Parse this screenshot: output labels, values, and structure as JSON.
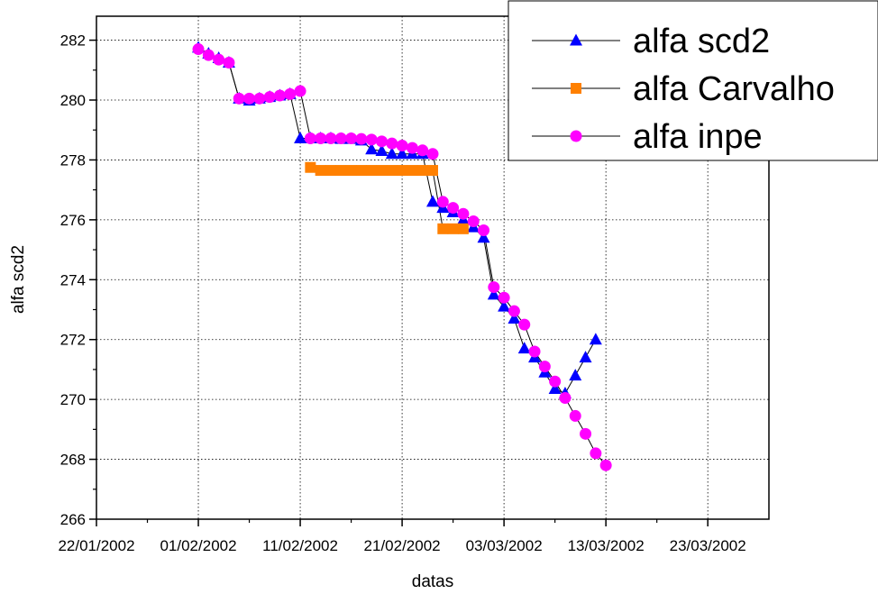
{
  "chart_data": {
    "type": "scatter",
    "xlabel": "datas",
    "ylabel": "alfa scd2",
    "x_ticks": [
      "22/01/2002",
      "01/02/2002",
      "11/02/2002",
      "21/02/2002",
      "03/03/2002",
      "13/03/2002",
      "23/03/2002"
    ],
    "y_ticks": [
      "266",
      "268",
      "270",
      "272",
      "274",
      "276",
      "278",
      "280",
      "282"
    ],
    "xlim": [
      "22/01/2002",
      "29/03/2002"
    ],
    "ylim": [
      266,
      282.8
    ],
    "grid": true,
    "legend_position": "top-right",
    "series": [
      {
        "name": "alfa scd2",
        "marker": "triangle",
        "color": "#0000ff",
        "points": [
          [
            "01/02/2002",
            281.75
          ],
          [
            "02/02/2002",
            281.55
          ],
          [
            "03/02/2002",
            281.4
          ],
          [
            "04/02/2002",
            281.25
          ],
          [
            "05/02/2002",
            280.05
          ],
          [
            "06/02/2002",
            279.98
          ],
          [
            "07/02/2002",
            280.05
          ],
          [
            "08/02/2002",
            280.1
          ],
          [
            "09/02/2002",
            280.15
          ],
          [
            "10/02/2002",
            280.2
          ],
          [
            "11/02/2002",
            278.72
          ],
          [
            "12/02/2002",
            278.72
          ],
          [
            "13/02/2002",
            278.72
          ],
          [
            "14/02/2002",
            278.72
          ],
          [
            "15/02/2002",
            278.7
          ],
          [
            "16/02/2002",
            278.7
          ],
          [
            "17/02/2002",
            278.65
          ],
          [
            "18/02/2002",
            278.35
          ],
          [
            "19/02/2002",
            278.3
          ],
          [
            "20/02/2002",
            278.2
          ],
          [
            "21/02/2002",
            278.2
          ],
          [
            "22/02/2002",
            278.2
          ],
          [
            "23/02/2002",
            278.2
          ],
          [
            "24/02/2002",
            276.6
          ],
          [
            "25/02/2002",
            276.4
          ],
          [
            "26/02/2002",
            276.25
          ],
          [
            "27/02/2002",
            276.0
          ],
          [
            "28/02/2002",
            275.75
          ],
          [
            "01/03/2002",
            275.4
          ],
          [
            "02/03/2002",
            273.5
          ],
          [
            "03/03/2002",
            273.1
          ],
          [
            "04/03/2002",
            272.7
          ],
          [
            "05/03/2002",
            271.7
          ],
          [
            "06/03/2002",
            271.4
          ],
          [
            "07/03/2002",
            270.9
          ],
          [
            "08/03/2002",
            270.35
          ],
          [
            "09/03/2002",
            270.2
          ],
          [
            "10/03/2002",
            270.8
          ],
          [
            "11/03/2002",
            271.4
          ],
          [
            "12/03/2002",
            272.0
          ]
        ]
      },
      {
        "name": "alfa Carvalho",
        "marker": "square",
        "color": "#ff8000",
        "points": [
          [
            "12/02/2002",
            277.75
          ],
          [
            "13/02/2002",
            277.65
          ],
          [
            "14/02/2002",
            277.65
          ],
          [
            "15/02/2002",
            277.65
          ],
          [
            "16/02/2002",
            277.65
          ],
          [
            "17/02/2002",
            277.65
          ],
          [
            "18/02/2002",
            277.65
          ],
          [
            "19/02/2002",
            277.65
          ],
          [
            "20/02/2002",
            277.65
          ],
          [
            "21/02/2002",
            277.65
          ],
          [
            "22/02/2002",
            277.65
          ],
          [
            "23/02/2002",
            277.65
          ],
          [
            "24/02/2002",
            277.65
          ],
          [
            "25/02/2002",
            275.7
          ],
          [
            "26/02/2002",
            275.7
          ],
          [
            "27/02/2002",
            275.7
          ]
        ]
      },
      {
        "name": "alfa inpe",
        "marker": "circle",
        "color": "#ff00ff",
        "points": [
          [
            "01/02/2002",
            281.7
          ],
          [
            "02/02/2002",
            281.5
          ],
          [
            "03/02/2002",
            281.35
          ],
          [
            "04/02/2002",
            281.25
          ],
          [
            "05/02/2002",
            280.05
          ],
          [
            "06/02/2002",
            280.05
          ],
          [
            "07/02/2002",
            280.05
          ],
          [
            "08/02/2002",
            280.1
          ],
          [
            "09/02/2002",
            280.15
          ],
          [
            "10/02/2002",
            280.2
          ],
          [
            "11/02/2002",
            280.3
          ],
          [
            "12/02/2002",
            278.72
          ],
          [
            "13/02/2002",
            278.72
          ],
          [
            "14/02/2002",
            278.72
          ],
          [
            "15/02/2002",
            278.72
          ],
          [
            "16/02/2002",
            278.72
          ],
          [
            "17/02/2002",
            278.7
          ],
          [
            "18/02/2002",
            278.68
          ],
          [
            "19/02/2002",
            278.62
          ],
          [
            "20/02/2002",
            278.55
          ],
          [
            "21/02/2002",
            278.48
          ],
          [
            "22/02/2002",
            278.4
          ],
          [
            "23/02/2002",
            278.32
          ],
          [
            "24/02/2002",
            278.2
          ],
          [
            "25/02/2002",
            276.6
          ],
          [
            "26/02/2002",
            276.4
          ],
          [
            "27/02/2002",
            276.2
          ],
          [
            "28/02/2002",
            275.95
          ],
          [
            "01/03/2002",
            275.65
          ],
          [
            "02/03/2002",
            273.75
          ],
          [
            "03/03/2002",
            273.4
          ],
          [
            "04/03/2002",
            272.95
          ],
          [
            "05/03/2002",
            272.5
          ],
          [
            "06/03/2002",
            271.6
          ],
          [
            "07/03/2002",
            271.1
          ],
          [
            "08/03/2002",
            270.6
          ],
          [
            "09/03/2002",
            270.05
          ],
          [
            "10/03/2002",
            269.45
          ],
          [
            "11/03/2002",
            268.85
          ],
          [
            "12/03/2002",
            268.2
          ],
          [
            "13/03/2002",
            267.8
          ]
        ]
      }
    ]
  }
}
